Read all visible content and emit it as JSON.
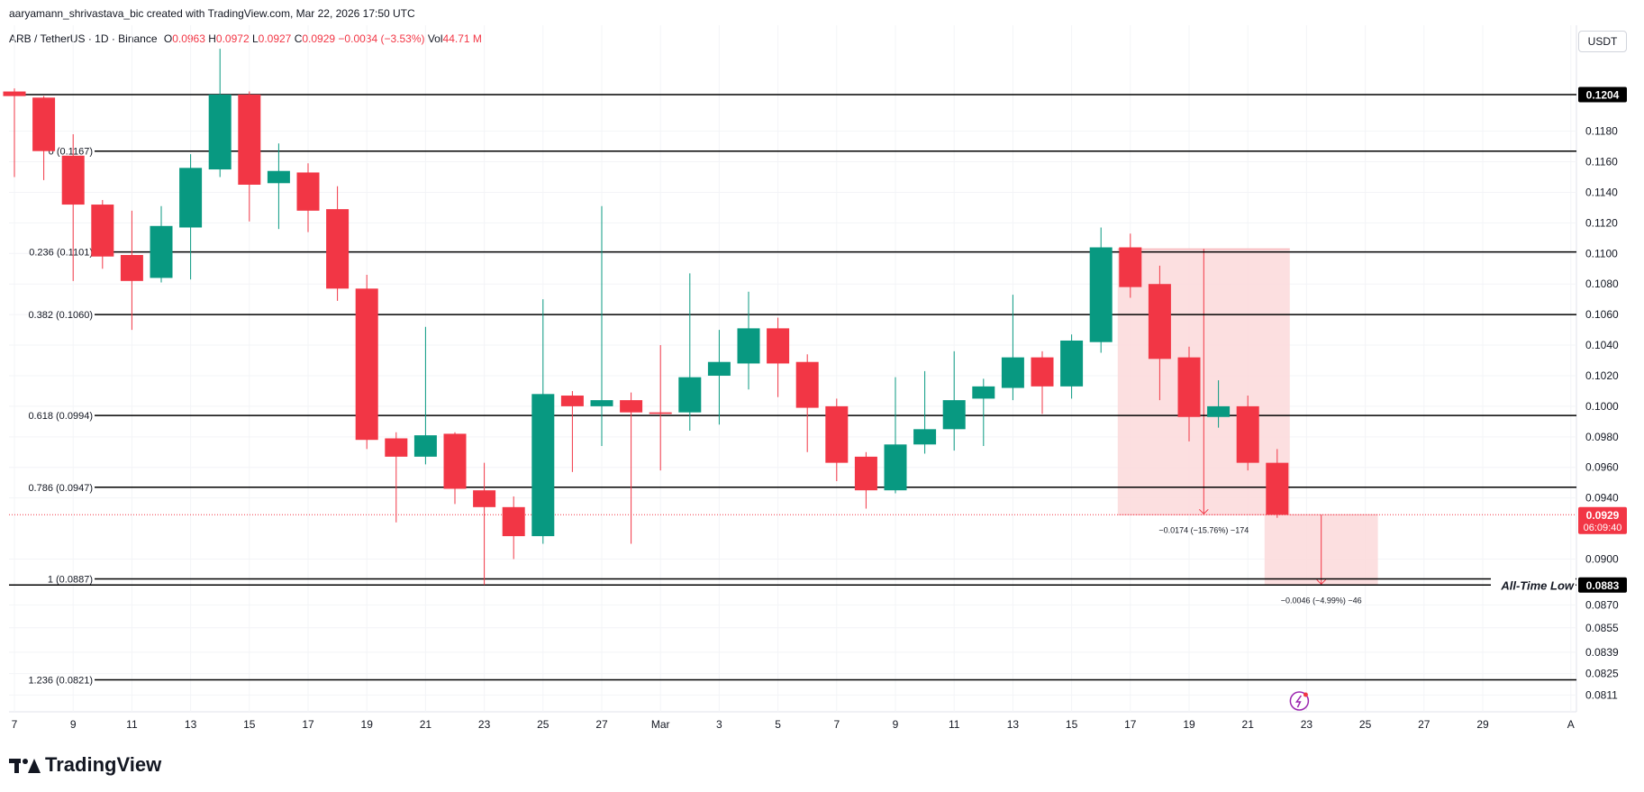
{
  "header": {
    "attribution": "aaryamann_shrivastava_bic created with TradingView.com, Mar 22, 2026 17:50 UTC",
    "symbol": "ARB / TetherUS · 1D · Binance",
    "o_label": "O",
    "o_value": "0.0963",
    "h_label": "H",
    "h_value": "0.0972",
    "l_label": "L",
    "l_value": "0.0927",
    "c_label": "C",
    "c_value": "0.0929",
    "change": "−0.0034 (−3.53%)",
    "vol_label": "Vol",
    "vol_value": "44.71 M"
  },
  "currency": "USDT",
  "brand": "TradingView",
  "colors": {
    "up": "#089981",
    "down": "#f23645",
    "zone": "#fbd9db",
    "badge": "#f23645",
    "black": "#000000"
  },
  "chart_data": {
    "type": "candlestick",
    "title": "ARB / TetherUS · 1D · Binance",
    "ylabel": "USDT",
    "ylim": [
      0.0808,
      0.1242
    ],
    "price_ticks": [
      "0.1180",
      "0.1160",
      "0.1140",
      "0.1120",
      "0.1100",
      "0.1080",
      "0.1060",
      "0.1040",
      "0.1020",
      "0.1000",
      "0.0980",
      "0.0960",
      "0.0940",
      "0.0900",
      "0.0870",
      "0.0855",
      "0.0839",
      "0.0825",
      "0.0811"
    ],
    "x_ticks": [
      {
        "i": 0,
        "label": "7"
      },
      {
        "i": 2,
        "label": "9"
      },
      {
        "i": 4,
        "label": "11"
      },
      {
        "i": 6,
        "label": "13"
      },
      {
        "i": 8,
        "label": "15"
      },
      {
        "i": 10,
        "label": "17"
      },
      {
        "i": 12,
        "label": "19"
      },
      {
        "i": 14,
        "label": "21"
      },
      {
        "i": 16,
        "label": "23"
      },
      {
        "i": 18,
        "label": "25"
      },
      {
        "i": 20,
        "label": "27"
      },
      {
        "i": 22,
        "label": "Mar"
      },
      {
        "i": 24,
        "label": "3"
      },
      {
        "i": 26,
        "label": "5"
      },
      {
        "i": 28,
        "label": "7"
      },
      {
        "i": 30,
        "label": "9"
      },
      {
        "i": 32,
        "label": "11"
      },
      {
        "i": 34,
        "label": "13"
      },
      {
        "i": 36,
        "label": "15"
      },
      {
        "i": 38,
        "label": "17"
      },
      {
        "i": 40,
        "label": "19"
      },
      {
        "i": 42,
        "label": "21"
      },
      {
        "i": 44,
        "label": "23"
      },
      {
        "i": 46,
        "label": "25"
      },
      {
        "i": 48,
        "label": "27"
      },
      {
        "i": 50,
        "label": "29"
      },
      {
        "i": 53,
        "label": "A"
      }
    ],
    "candles": [
      {
        "o": 0.1206,
        "h": 0.1208,
        "l": 0.115,
        "c": 0.1203
      },
      {
        "o": 0.1202,
        "h": 0.1203,
        "l": 0.1148,
        "c": 0.1167
      },
      {
        "o": 0.1164,
        "h": 0.1178,
        "l": 0.1082,
        "c": 0.1132
      },
      {
        "o": 0.1132,
        "h": 0.1135,
        "l": 0.109,
        "c": 0.1098
      },
      {
        "o": 0.1099,
        "h": 0.1128,
        "l": 0.105,
        "c": 0.1082
      },
      {
        "o": 0.1084,
        "h": 0.1131,
        "l": 0.1081,
        "c": 0.1118
      },
      {
        "o": 0.1117,
        "h": 0.1165,
        "l": 0.1083,
        "c": 0.1156
      },
      {
        "o": 0.1155,
        "h": 0.1234,
        "l": 0.115,
        "c": 0.1204
      },
      {
        "o": 0.1204,
        "h": 0.1206,
        "l": 0.1121,
        "c": 0.1145
      },
      {
        "o": 0.1146,
        "h": 0.1172,
        "l": 0.1116,
        "c": 0.1154
      },
      {
        "o": 0.1153,
        "h": 0.1159,
        "l": 0.1114,
        "c": 0.1128
      },
      {
        "o": 0.1129,
        "h": 0.1144,
        "l": 0.1069,
        "c": 0.1077
      },
      {
        "o": 0.1077,
        "h": 0.1086,
        "l": 0.0972,
        "c": 0.0978
      },
      {
        "o": 0.0979,
        "h": 0.0983,
        "l": 0.0924,
        "c": 0.0967
      },
      {
        "o": 0.0967,
        "h": 0.1052,
        "l": 0.0962,
        "c": 0.0981
      },
      {
        "o": 0.0982,
        "h": 0.0983,
        "l": 0.0936,
        "c": 0.0946
      },
      {
        "o": 0.0945,
        "h": 0.0963,
        "l": 0.0883,
        "c": 0.0934
      },
      {
        "o": 0.0934,
        "h": 0.0941,
        "l": 0.09,
        "c": 0.0915
      },
      {
        "o": 0.0915,
        "h": 0.107,
        "l": 0.091,
        "c": 0.1008
      },
      {
        "o": 0.1007,
        "h": 0.101,
        "l": 0.0957,
        "c": 0.1
      },
      {
        "o": 0.1,
        "h": 0.1131,
        "l": 0.0974,
        "c": 0.1004
      },
      {
        "o": 0.1004,
        "h": 0.1009,
        "l": 0.091,
        "c": 0.0996
      },
      {
        "o": 0.0996,
        "h": 0.104,
        "l": 0.0958,
        "c": 0.0995
      },
      {
        "o": 0.0996,
        "h": 0.1087,
        "l": 0.0984,
        "c": 0.1019
      },
      {
        "o": 0.102,
        "h": 0.105,
        "l": 0.0988,
        "c": 0.1029
      },
      {
        "o": 0.1028,
        "h": 0.1075,
        "l": 0.1011,
        "c": 0.1051
      },
      {
        "o": 0.1051,
        "h": 0.1058,
        "l": 0.1006,
        "c": 0.1028
      },
      {
        "o": 0.1029,
        "h": 0.1034,
        "l": 0.097,
        "c": 0.0999
      },
      {
        "o": 0.1,
        "h": 0.1005,
        "l": 0.0951,
        "c": 0.0963
      },
      {
        "o": 0.0967,
        "h": 0.097,
        "l": 0.0933,
        "c": 0.0945
      },
      {
        "o": 0.0945,
        "h": 0.1019,
        "l": 0.0943,
        "c": 0.0975
      },
      {
        "o": 0.0975,
        "h": 0.1023,
        "l": 0.0969,
        "c": 0.0985
      },
      {
        "o": 0.0985,
        "h": 0.1036,
        "l": 0.0971,
        "c": 0.1004
      },
      {
        "o": 0.1005,
        "h": 0.1018,
        "l": 0.0974,
        "c": 0.1013
      },
      {
        "o": 0.1012,
        "h": 0.1073,
        "l": 0.1004,
        "c": 0.1032
      },
      {
        "o": 0.1032,
        "h": 0.1036,
        "l": 0.0995,
        "c": 0.1013
      },
      {
        "o": 0.1013,
        "h": 0.1047,
        "l": 0.1005,
        "c": 0.1043
      },
      {
        "o": 0.1042,
        "h": 0.1117,
        "l": 0.1035,
        "c": 0.1104
      },
      {
        "o": 0.1104,
        "h": 0.1113,
        "l": 0.1071,
        "c": 0.1078
      },
      {
        "o": 0.108,
        "h": 0.1092,
        "l": 0.1004,
        "c": 0.1031
      },
      {
        "o": 0.1032,
        "h": 0.1039,
        "l": 0.0977,
        "c": 0.0993
      },
      {
        "o": 0.0993,
        "h": 0.1017,
        "l": 0.0986,
        "c": 0.1
      },
      {
        "o": 0.1,
        "h": 0.1007,
        "l": 0.0958,
        "c": 0.0963
      },
      {
        "o": 0.0963,
        "h": 0.0972,
        "l": 0.0927,
        "c": 0.0929
      }
    ],
    "fib_levels": [
      {
        "price": 0.1204,
        "label": ""
      },
      {
        "price": 0.1167,
        "label": "0 (0.1167)"
      },
      {
        "price": 0.1101,
        "label": "0.236 (0.1101)"
      },
      {
        "price": 0.106,
        "label": "0.382 (0.1060)"
      },
      {
        "price": 0.0994,
        "label": "0.618 (0.0994)"
      },
      {
        "price": 0.0947,
        "label": "0.786 (0.0947)"
      },
      {
        "price": 0.0887,
        "label": "1 (0.0887)"
      },
      {
        "price": 0.0883,
        "label": ""
      },
      {
        "price": 0.0821,
        "label": "1.236 (0.0821)"
      }
    ],
    "badges": [
      {
        "price": 0.1204,
        "label": "0.1204",
        "style": "black"
      },
      {
        "price": 0.0929,
        "label": "0.0929",
        "sub": "06:09:40",
        "style": "red"
      },
      {
        "price": 0.0883,
        "label": "0.0883",
        "style": "black"
      }
    ],
    "ath_label": "All-Time Low",
    "current_price": 0.0929,
    "measures": [
      {
        "i0": 38,
        "i1": 43,
        "top": 0.1103,
        "bottom": 0.0929,
        "arrow_i": 40.5,
        "text": "−0.0174 (−15.76%) −174"
      },
      {
        "i0": 43,
        "i1": 46,
        "top": 0.0929,
        "bottom": 0.0883,
        "arrow_i": 44.5,
        "text": "−0.0046 (−4.99%) −46"
      }
    ]
  }
}
